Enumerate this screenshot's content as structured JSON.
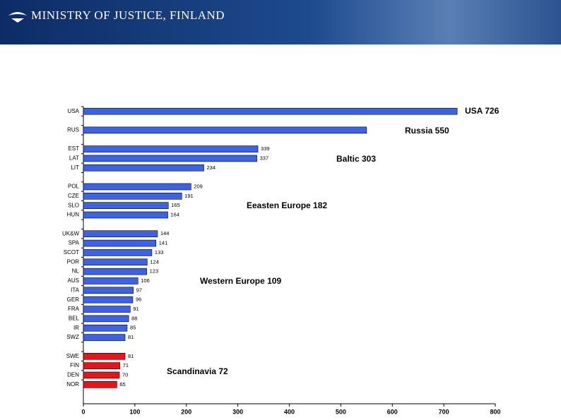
{
  "header": {
    "title": "MINISTRY OF JUSTICE, FINLAND"
  },
  "chart_data": {
    "type": "bar",
    "orientation": "horizontal",
    "categories": [
      "USA",
      null,
      "RUS",
      null,
      "EST",
      "LAT",
      "LIT",
      null,
      "POL",
      "CZE",
      "SLO",
      "HUN",
      null,
      "UK&W",
      "SPA",
      "SCOT",
      "POR",
      "NL",
      "AUS",
      "ITA",
      "GER",
      "FRA",
      "BEL",
      "IR",
      "SWZ",
      null,
      "SWE",
      "FIN",
      "DEN",
      "NOR"
    ],
    "values": [
      726,
      null,
      550,
      null,
      339,
      337,
      234,
      null,
      209,
      191,
      165,
      164,
      null,
      144,
      141,
      133,
      124,
      123,
      106,
      97,
      96,
      91,
      88,
      85,
      81,
      null,
      81,
      71,
      70,
      65
    ],
    "value_labels": [
      null,
      null,
      null,
      null,
      "339",
      "337",
      "234",
      null,
      "209",
      "191",
      "165",
      "164",
      null,
      "144",
      "141",
      "133",
      "124",
      "123",
      "106",
      "97",
      "96",
      "91",
      "88",
      "85",
      "81",
      null,
      "81",
      "71",
      "70",
      "65"
    ],
    "colors": [
      "#3d62e6",
      null,
      "#3d62e6",
      null,
      "#3d62e6",
      "#3d62e6",
      "#3d62e6",
      null,
      "#3d62e6",
      "#3d62e6",
      "#3d62e6",
      "#3d62e6",
      null,
      "#3d62e6",
      "#3d62e6",
      "#3d62e6",
      "#3d62e6",
      "#3d62e6",
      "#3d62e6",
      "#3d62e6",
      "#3d62e6",
      "#3d62e6",
      "#3d62e6",
      "#3d62e6",
      "#3d62e6",
      null,
      "#e8141b",
      "#e8141b",
      "#e8141b",
      "#e8141b"
    ],
    "xlim": [
      0,
      800
    ],
    "xticks": [
      0,
      100,
      200,
      300,
      400,
      500,
      600,
      700,
      800
    ],
    "annotations": [
      "USA 726",
      "Russia 550",
      "Baltic 303",
      "Eeasten Europe 182",
      "Western Europe 109",
      "Scandinavia 72"
    ]
  }
}
